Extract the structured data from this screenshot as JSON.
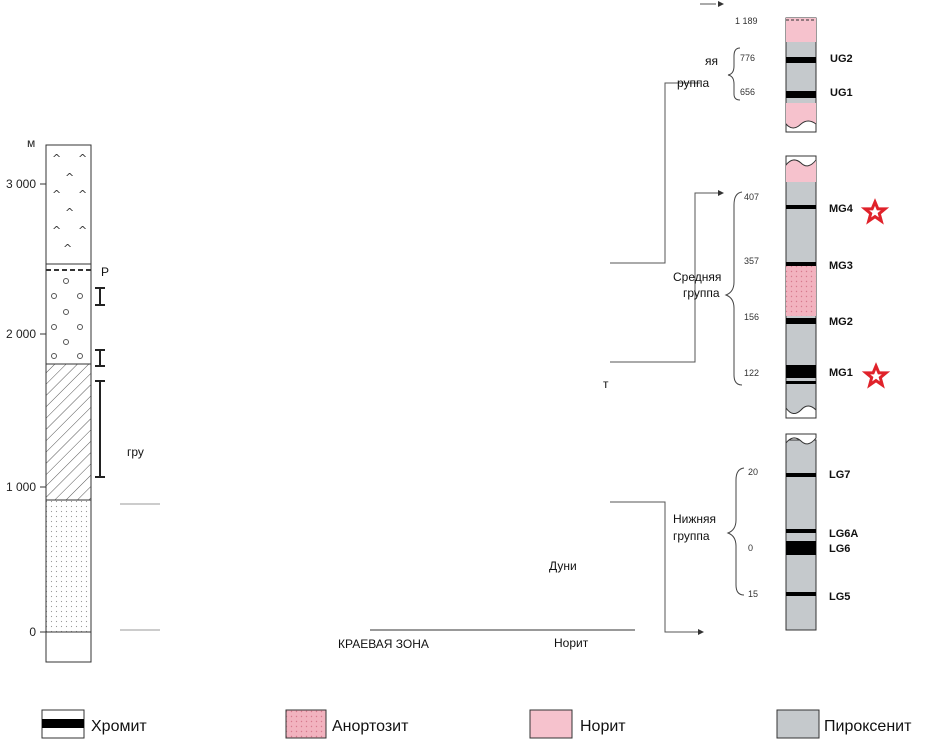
{
  "left_column": {
    "unit": "м",
    "ticks": [
      {
        "v": "3 000",
        "y": 184
      },
      {
        "v": "2 000",
        "y": 334
      },
      {
        "v": "1 000",
        "y": 487
      },
      {
        "v": "0",
        "y": 632
      }
    ]
  },
  "fragments": {
    "p_letter": "Р",
    "gru": "гру",
    "upper_partial": "яя",
    "upper_partial2": "руппа",
    "t_letter": "т",
    "dun": "Дуни",
    "edge_zone": "КРАЕВАЯ ЗОНА",
    "norite_bottom": "Норит"
  },
  "groups": {
    "upper": {
      "top_value": "1 189",
      "seams": [
        {
          "name": "UG2",
          "value": "776"
        },
        {
          "name": "UG1",
          "value": "656"
        }
      ]
    },
    "middle": {
      "label_line1": "Средняя",
      "label_line2": "группа",
      "seams": [
        {
          "name": "MG4",
          "value": "407",
          "star": true
        },
        {
          "name": "MG3",
          "value": "357",
          "star": false
        },
        {
          "name": "MG2",
          "value": "156",
          "star": false
        },
        {
          "name": "MG1",
          "value": "122",
          "star": true
        }
      ]
    },
    "lower": {
      "label_line1": "Нижняя",
      "label_line2": "группа",
      "seams": [
        {
          "name": "LG7",
          "value": "20"
        },
        {
          "name": "LG6A",
          "value": ""
        },
        {
          "name": "LG6",
          "value": "0"
        },
        {
          "name": "LG5",
          "value": "15"
        }
      ]
    }
  },
  "legend": [
    {
      "key": "chromite",
      "label": "Хромит"
    },
    {
      "key": "anorthosite",
      "label": "Анортозит"
    },
    {
      "key": "norite",
      "label": "Норит"
    },
    {
      "key": "pyroxenite",
      "label": "Пироксенит"
    }
  ],
  "colors": {
    "chromite": "#000000",
    "anorthosite": "#f2b3bf",
    "norite": "#f6c2cd",
    "pyroxenite": "#c5c9cc",
    "star": "#e0222a"
  }
}
